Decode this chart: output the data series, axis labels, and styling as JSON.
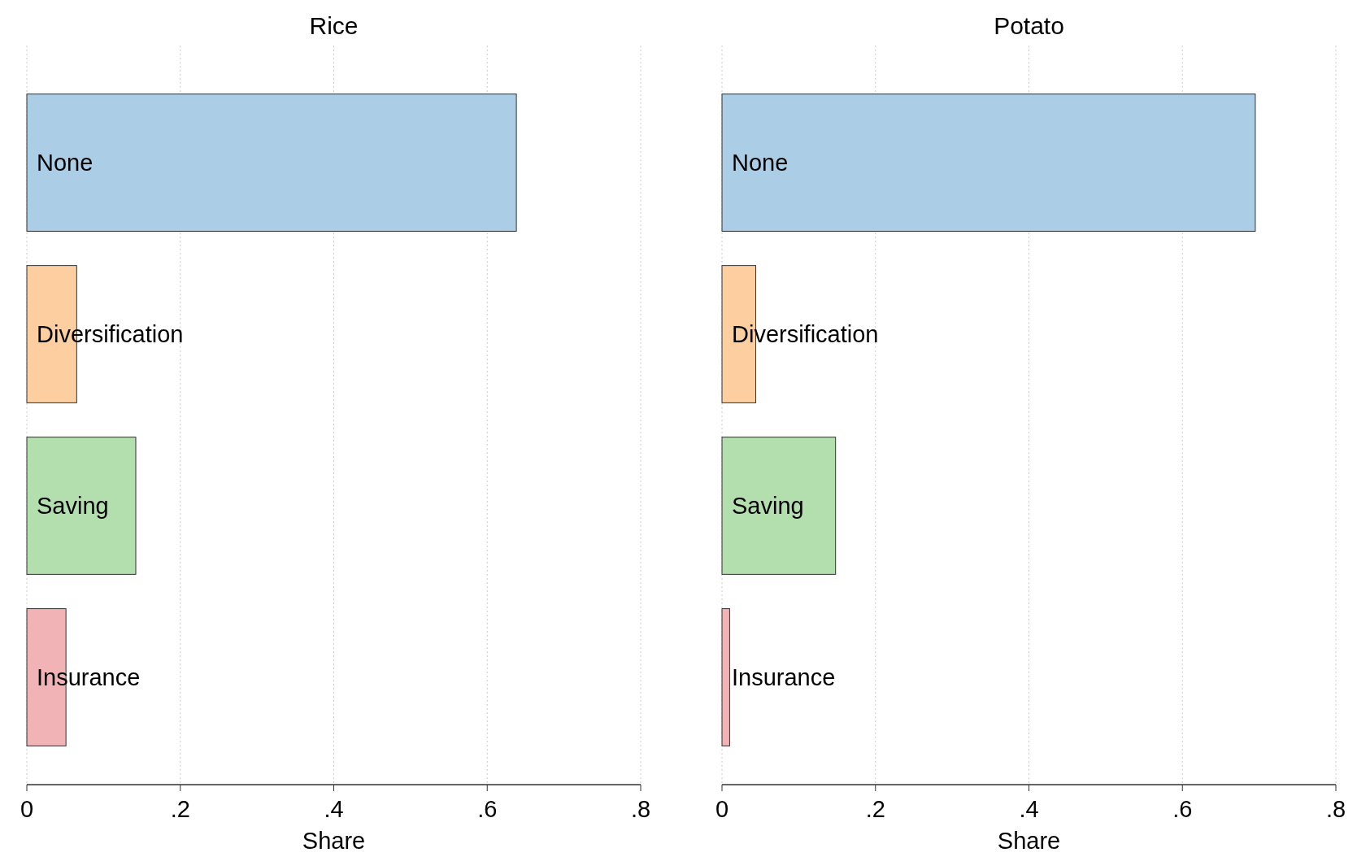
{
  "chart_data": [
    {
      "type": "bar",
      "orientation": "horizontal",
      "title": "Rice",
      "xlabel": "Share",
      "categories": [
        "None",
        "Diversification",
        "Saving",
        "Insurance"
      ],
      "values": [
        0.638,
        0.065,
        0.142,
        0.051
      ],
      "colors": [
        "#abcde5",
        "#fdcfa0",
        "#b3dfae",
        "#f1b3b6"
      ],
      "xlim": [
        0,
        0.8
      ],
      "xticks": [
        0,
        {
          "value": 0.2,
          "label": ".2"
        },
        {
          "value": 0.4,
          "label": ".4"
        },
        {
          "value": 0.6,
          "label": ".6"
        },
        {
          "value": 0.8,
          "label": ".8"
        }
      ],
      "grid": "x"
    },
    {
      "type": "bar",
      "orientation": "horizontal",
      "title": "Potato",
      "xlabel": "Share",
      "categories": [
        "None",
        "Diversification",
        "Saving",
        "Insurance"
      ],
      "values": [
        0.695,
        0.044,
        0.148,
        0.01
      ],
      "colors": [
        "#abcde5",
        "#fdcfa0",
        "#b3dfae",
        "#f1b3b6"
      ],
      "xlim": [
        0,
        0.8
      ],
      "xticks": [
        0,
        {
          "value": 0.2,
          "label": ".2"
        },
        {
          "value": 0.4,
          "label": ".4"
        },
        {
          "value": 0.6,
          "label": ".6"
        },
        {
          "value": 0.8,
          "label": ".8"
        }
      ],
      "grid": "x"
    }
  ]
}
